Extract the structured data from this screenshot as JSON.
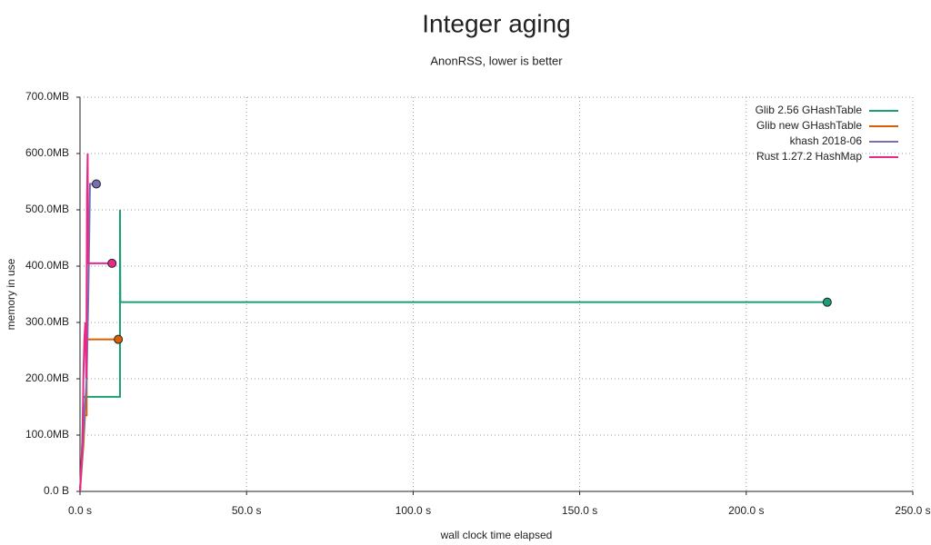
{
  "chart_data": {
    "type": "line",
    "title": "Integer aging",
    "subtitle": "AnonRSS, lower is better",
    "x_label": "wall clock time elapsed",
    "y_label": "memory in use",
    "xlim": [
      0,
      250
    ],
    "xticks": [
      {
        "value": 0,
        "label": "0.0 s"
      },
      {
        "value": 50,
        "label": "50.0 s"
      },
      {
        "value": 100,
        "label": "100.0 s"
      },
      {
        "value": 150,
        "label": "150.0 s"
      },
      {
        "value": 200,
        "label": "200.0 s"
      },
      {
        "value": 250,
        "label": "250.0 s"
      }
    ],
    "ylim": [
      0,
      700
    ],
    "yticks": [
      {
        "value": 0,
        "label": "0.0 B"
      },
      {
        "value": 100,
        "label": "100.0MB"
      },
      {
        "value": 200,
        "label": "200.0MB"
      },
      {
        "value": 300,
        "label": "300.0MB"
      },
      {
        "value": 400,
        "label": "400.0MB"
      },
      {
        "value": 500,
        "label": "500.0MB"
      },
      {
        "value": 600,
        "label": "600.0MB"
      },
      {
        "value": 700,
        "label": "700.0MB"
      }
    ],
    "grid": true,
    "legend": "top-right",
    "series": [
      {
        "name": "Glib 2.56 GHashTable",
        "color": "#1b9e77",
        "x": [
          0,
          0.5,
          1,
          12,
          12,
          12,
          12.1,
          224.3
        ],
        "values": [
          0,
          50,
          168,
          168,
          290,
          500,
          336,
          336
        ]
      },
      {
        "name": "Glib new GHashTable",
        "color": "#d95f02",
        "x": [
          0,
          1,
          1.5,
          2,
          2,
          11.5
        ],
        "values": [
          0,
          80,
          135,
          135,
          270,
          270
        ]
      },
      {
        "name": "khash 2018-06",
        "color": "#7570b3",
        "x": [
          0,
          1,
          2,
          2.5,
          3,
          4.9
        ],
        "values": [
          0,
          100,
          200,
          350,
          546,
          546
        ]
      },
      {
        "name": "Rust 1.27.2 HashMap",
        "color": "#e7298a",
        "x": [
          0,
          0.8,
          1,
          1.3,
          1.6,
          1.9,
          2.1,
          2.3,
          2.4,
          9.6
        ],
        "values": [
          0,
          100,
          200,
          270,
          300,
          200,
          520,
          600,
          405,
          405
        ]
      }
    ]
  }
}
